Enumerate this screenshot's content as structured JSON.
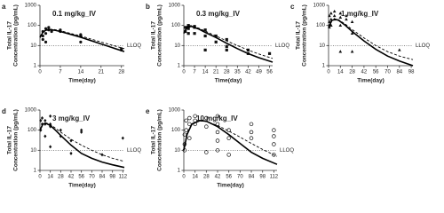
{
  "chart_data": [
    {
      "type": "scatter-line",
      "panel_label": "a",
      "title": "0.1 mg/kg_IV",
      "xlabel": "Time(day)",
      "ylabel": [
        "Total IL-17",
        "Concentration (pg/mL)"
      ],
      "xlim": [
        0,
        29
      ],
      "xticks": [
        0,
        7,
        14,
        21,
        28
      ],
      "ylim": [
        1,
        1000
      ],
      "yticks": [
        1,
        10,
        100,
        1000
      ],
      "log_y": true,
      "reference": {
        "value": 10,
        "label": "LLOQ"
      },
      "series": [
        {
          "style": "marker",
          "marker": "circle",
          "color": "#111",
          "x": [
            1,
            1,
            1,
            2,
            2,
            2,
            3,
            3,
            4,
            7,
            7,
            14,
            14,
            14,
            28,
            28
          ],
          "values": [
            20,
            50,
            30,
            15,
            40,
            70,
            60,
            80,
            50,
            60,
            50,
            15,
            30,
            35,
            6,
            7
          ]
        },
        {
          "style": "solid",
          "color": "#000",
          "x": [
            0,
            1,
            2,
            3,
            5,
            7,
            10,
            14,
            21,
            29
          ],
          "values": [
            25,
            45,
            58,
            62,
            58,
            50,
            38,
            26,
            12,
            5
          ]
        },
        {
          "style": "dashed",
          "color": "#000",
          "x": [
            0,
            1,
            2,
            3,
            5,
            7,
            10,
            14,
            21,
            29
          ],
          "values": [
            28,
            50,
            62,
            66,
            62,
            55,
            42,
            30,
            15,
            7
          ]
        }
      ]
    },
    {
      "type": "scatter-line",
      "panel_label": "b",
      "title": "0.3 mg/kg_IV",
      "xlabel": "Time(day)",
      "ylabel": [
        "Total IL-17",
        "Concentration (pg/mL)"
      ],
      "xlim": [
        0,
        58
      ],
      "xticks": [
        0,
        7,
        14,
        21,
        28,
        35,
        42,
        49,
        56
      ],
      "ylim": [
        1,
        1000
      ],
      "yticks": [
        1,
        10,
        100,
        1000
      ],
      "log_y": true,
      "reference": {
        "value": 10,
        "label": "LLOQ"
      },
      "series": [
        {
          "style": "marker",
          "marker": "square",
          "color": "#111",
          "x": [
            1,
            1,
            3,
            3,
            3,
            7,
            7,
            7,
            14,
            14,
            14,
            21,
            21,
            28,
            28,
            28,
            42,
            42,
            56
          ],
          "values": [
            50,
            80,
            100,
            40,
            70,
            40,
            80,
            90,
            60,
            30,
            6,
            30,
            15,
            20,
            6,
            9,
            6,
            4,
            4
          ]
        },
        {
          "style": "solid",
          "color": "#000",
          "x": [
            0,
            2,
            5,
            10,
            14,
            21,
            28,
            35,
            42,
            49,
            58
          ],
          "values": [
            40,
            80,
            90,
            65,
            45,
            25,
            13,
            7,
            4,
            2.5,
            1.5
          ]
        },
        {
          "style": "dashed",
          "color": "#000",
          "x": [
            0,
            2,
            5,
            10,
            14,
            21,
            28,
            35,
            42,
            49,
            58
          ],
          "values": [
            45,
            90,
            100,
            72,
            52,
            30,
            17,
            10,
            6,
            3.8,
            2.3
          ]
        }
      ]
    },
    {
      "type": "scatter-line",
      "panel_label": "c",
      "title": "1 mg/kg_IV",
      "xlabel": "Time(day)",
      "ylabel": [
        "Total IL-17",
        "Concentration (pg/mL)"
      ],
      "xlim": [
        0,
        100
      ],
      "xticks": [
        0,
        14,
        28,
        42,
        56,
        70,
        84,
        98
      ],
      "ylim": [
        1,
        1000
      ],
      "yticks": [
        1,
        10,
        100,
        1000
      ],
      "log_y": true,
      "reference": {
        "value": 10,
        "label": "LLOQ"
      },
      "series": [
        {
          "style": "marker",
          "marker": "triangle",
          "color": "#111",
          "x": [
            1,
            1,
            1,
            3,
            3,
            3,
            7,
            7,
            7,
            14,
            14,
            14,
            14,
            21,
            21,
            28,
            28,
            28,
            84
          ],
          "values": [
            300,
            150,
            80,
            400,
            200,
            100,
            500,
            300,
            200,
            400,
            250,
            100,
            5,
            300,
            200,
            150,
            40,
            5,
            6
          ]
        },
        {
          "style": "solid",
          "color": "#000",
          "x": [
            0,
            4,
            8,
            12,
            20,
            28,
            42,
            56,
            70,
            84,
            100
          ],
          "values": [
            80,
            180,
            200,
            180,
            100,
            50,
            17,
            6.5,
            3,
            1.7,
            1
          ]
        },
        {
          "style": "dashed",
          "color": "#000",
          "x": [
            0,
            4,
            8,
            12,
            20,
            28,
            42,
            56,
            70,
            84,
            100
          ],
          "values": [
            90,
            190,
            210,
            190,
            115,
            62,
            24,
            10,
            5,
            3,
            2
          ]
        }
      ]
    },
    {
      "type": "scatter-line",
      "panel_label": "d",
      "title": "3 mg/kg_IV",
      "xlabel": "Time(day)",
      "ylabel": [
        "Total IL-17",
        "Concentration (pg/mL)"
      ],
      "xlim": [
        0,
        114
      ],
      "xticks": [
        0,
        14,
        28,
        42,
        56,
        70,
        84,
        98,
        112
      ],
      "ylim": [
        1,
        1000
      ],
      "yticks": [
        1,
        10,
        100,
        1000
      ],
      "log_y": true,
      "reference": {
        "value": 10,
        "label": "LLOQ"
      },
      "series": [
        {
          "style": "marker",
          "marker": "diamond",
          "color": "#111",
          "x": [
            1,
            1,
            3,
            3,
            7,
            7,
            7,
            14,
            14,
            14,
            14,
            28,
            28,
            42,
            42,
            56,
            56,
            84,
            112
          ],
          "values": [
            300,
            100,
            200,
            400,
            300,
            200,
            50,
            500,
            150,
            15,
            200,
            100,
            50,
            30,
            7,
            80,
            100,
            6,
            40
          ]
        },
        {
          "style": "solid",
          "color": "#000",
          "x": [
            0,
            4,
            8,
            14,
            21,
            28,
            42,
            56,
            70,
            84,
            98,
            114
          ],
          "values": [
            100,
            200,
            220,
            170,
            100,
            55,
            18,
            7,
            4,
            2.6,
            1.9,
            1.4
          ]
        },
        {
          "style": "dashed",
          "color": "#000",
          "x": [
            0,
            4,
            8,
            14,
            21,
            28,
            42,
            56,
            70,
            84,
            98,
            114
          ],
          "values": [
            110,
            210,
            230,
            190,
            125,
            80,
            35,
            18,
            10,
            6,
            4,
            2.8
          ]
        }
      ]
    },
    {
      "type": "scatter-line",
      "panel_label": "e",
      "title": "10 mg/kg_IV",
      "xlabel": "Time(day)",
      "ylabel": [
        "Total IL-17",
        "Concentration (pg/mL)"
      ],
      "xlim": [
        0,
        116
      ],
      "xticks": [
        0,
        14,
        28,
        42,
        56,
        70,
        84,
        98,
        112
      ],
      "ylim": [
        1,
        1000
      ],
      "yticks": [
        1,
        10,
        100,
        1000
      ],
      "log_y": true,
      "reference": {
        "value": 10,
        "label": "LLOQ"
      },
      "series": [
        {
          "style": "marker",
          "marker": "open-circle",
          "color": "#111",
          "x": [
            1,
            1,
            1,
            3,
            3,
            7,
            7,
            7,
            14,
            14,
            14,
            28,
            28,
            28,
            42,
            42,
            42,
            42,
            42,
            56,
            56,
            56,
            84,
            84,
            84,
            112,
            112,
            112,
            112
          ],
          "values": [
            10,
            20,
            60,
            100,
            300,
            400,
            200,
            40,
            300,
            500,
            200,
            400,
            150,
            8,
            500,
            200,
            80,
            30,
            10,
            100,
            40,
            6,
            200,
            80,
            40,
            100,
            50,
            20,
            6
          ]
        },
        {
          "style": "solid",
          "color": "#000",
          "x": [
            0,
            4,
            10,
            20,
            28,
            42,
            56,
            70,
            84,
            98,
            116
          ],
          "values": [
            10,
            60,
            200,
            300,
            280,
            150,
            60,
            22,
            8,
            4,
            2
          ]
        },
        {
          "style": "dashed",
          "color": "#000",
          "x": [
            0,
            4,
            10,
            20,
            28,
            42,
            56,
            70,
            84,
            98,
            116
          ],
          "values": [
            12,
            70,
            210,
            290,
            270,
            170,
            90,
            45,
            22,
            11,
            5
          ]
        }
      ]
    }
  ]
}
